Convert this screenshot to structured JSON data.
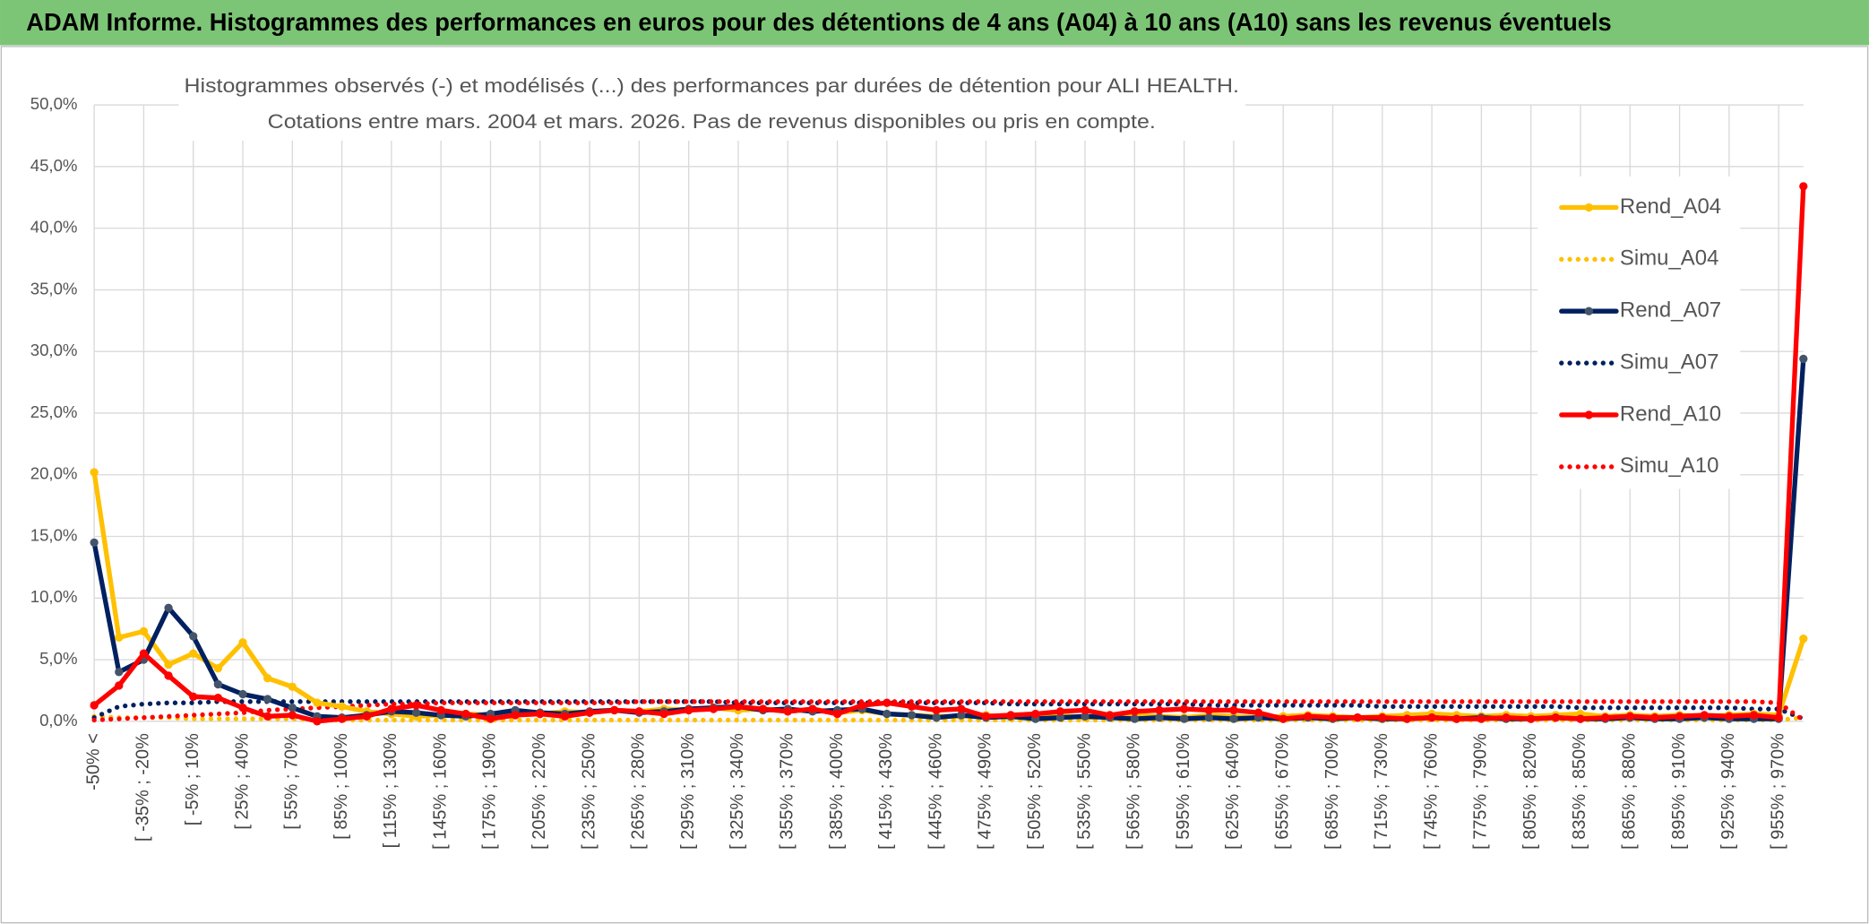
{
  "header": {
    "title": "ADAM Informe. Histogrammes des performances en euros pour des détentions de 4 ans (A04) à 10 ans (A10) sans les revenus éventuels"
  },
  "chart_data": {
    "type": "line",
    "title": "Histogrammes observés (-) et modélisés (...) des performances par durées de détention pour ALI HEALTH.",
    "subtitle": "Cotations entre mars. 2004 et mars. 2026. Pas de revenus disponibles ou pris en compte.",
    "categories": [
      "-50% <",
      null,
      "[ -35% ; -20%",
      null,
      "[ -5% ; 10%",
      null,
      "[ 25% ; 40%",
      null,
      "[ 55% ; 70%",
      null,
      "[ 85% ; 100%",
      null,
      "[ 115% ; 130%",
      null,
      "[ 145% ; 160%",
      null,
      "[ 175% ; 190%",
      null,
      "[ 205% ; 220%",
      null,
      "[ 235% ; 250%",
      null,
      "[ 265% ; 280%",
      null,
      "[ 295% ; 310%",
      null,
      "[ 325% ; 340%",
      null,
      "[ 355% ; 370%",
      null,
      "[ 385% ; 400%",
      null,
      "[ 415% ; 430%",
      null,
      "[ 445% ; 460%",
      null,
      "[ 475% ; 490%",
      null,
      "[ 505% ; 520%",
      null,
      "[ 535% ; 550%",
      null,
      "[ 565% ; 580%",
      null,
      "[ 595% ; 610%",
      null,
      "[ 625% ; 640%",
      null,
      "[ 655% ; 670%",
      null,
      "[ 685% ; 700%",
      null,
      "[ 715% ; 730%",
      null,
      "[ 745% ; 760%",
      null,
      "[ 775% ; 790%",
      null,
      "[ 805% ; 820%",
      null,
      "[ 835% ; 850%",
      null,
      "[ 865% ; 880%",
      null,
      "[ 895% ; 910%",
      null,
      "[ 925% ; 940%",
      null,
      "[ 955% ; 970%",
      null
    ],
    "series": [
      {
        "name": "Rend_A04",
        "color": "#ffc000",
        "line_style": "solid",
        "markers": true,
        "values": [
          20.2,
          6.8,
          7.3,
          4.6,
          5.5,
          4.3,
          6.4,
          3.5,
          2.8,
          1.5,
          1.2,
          0.8,
          0.6,
          0.4,
          0.5,
          0.6,
          0.5,
          0.7,
          0.6,
          0.8,
          0.7,
          0.9,
          0.8,
          1.0,
          0.9,
          1.1,
          0.9,
          1.0,
          0.8,
          1.0,
          0.7,
          0.9,
          0.6,
          0.5,
          0.4,
          0.4,
          0.5,
          0.3,
          0.4,
          0.5,
          0.3,
          0.4,
          0.5,
          0.4,
          0.3,
          0.5,
          0.4,
          0.3,
          0.4,
          0.5,
          0.4,
          0.3,
          0.4,
          0.5,
          0.6,
          0.5,
          0.4,
          0.5,
          0.4,
          0.5,
          0.6,
          0.4,
          0.5,
          0.4,
          0.5,
          0.4,
          0.5,
          0.6,
          0.5,
          6.7
        ]
      },
      {
        "name": "Simu_A04",
        "color": "#ffc000",
        "line_style": "dotted",
        "markers": false,
        "values": [
          0.4,
          0.3,
          0.3,
          0.3,
          0.2,
          0.2,
          0.2,
          0.2,
          0.2,
          0.1,
          0.1,
          0.1,
          0.1,
          0.1,
          0.1,
          0.1,
          0.1,
          0.1,
          0.1,
          0.1,
          0.1,
          0.1,
          0.1,
          0.1,
          0.1,
          0.1,
          0.1,
          0.1,
          0.1,
          0.1,
          0.1,
          0.1,
          0.1,
          0.1,
          0.1,
          0.1,
          0.1,
          0.1,
          0.1,
          0.1,
          0.1,
          0.1,
          0.1,
          0.1,
          0.1,
          0.1,
          0.1,
          0.1,
          0.1,
          0.1,
          0.1,
          0.1,
          0.1,
          0.1,
          0.1,
          0.1,
          0.1,
          0.1,
          0.1,
          0.1,
          0.1,
          0.1,
          0.1,
          0.1,
          0.1,
          0.1,
          0.1,
          0.1,
          0.1,
          0.3
        ]
      },
      {
        "name": "Rend_A07",
        "color": "#002060",
        "line_style": "solid",
        "markers": true,
        "values": [
          14.5,
          4.0,
          5.0,
          9.2,
          6.9,
          3.0,
          2.2,
          1.8,
          1.1,
          0.4,
          0.3,
          0.5,
          0.8,
          0.7,
          0.5,
          0.4,
          0.6,
          0.9,
          0.7,
          0.6,
          0.8,
          0.9,
          0.7,
          0.8,
          1.0,
          1.1,
          1.2,
          0.9,
          1.0,
          0.8,
          0.9,
          1.0,
          0.6,
          0.5,
          0.3,
          0.5,
          0.3,
          0.4,
          0.2,
          0.3,
          0.4,
          0.3,
          0.2,
          0.3,
          0.2,
          0.3,
          0.2,
          0.3,
          0.2,
          0.3,
          0.2,
          0.3,
          0.2,
          0.2,
          0.3,
          0.2,
          0.3,
          0.2,
          0.2,
          0.3,
          0.2,
          0.2,
          0.3,
          0.2,
          0.2,
          0.3,
          0.2,
          0.2,
          0.2,
          29.4
        ]
      },
      {
        "name": "Simu_A07",
        "color": "#002060",
        "line_style": "dotted",
        "markers": false,
        "values": [
          0.3,
          1.2,
          1.4,
          1.5,
          1.5,
          1.6,
          1.6,
          1.6,
          1.6,
          1.6,
          1.6,
          1.6,
          1.6,
          1.6,
          1.6,
          1.6,
          1.6,
          1.6,
          1.6,
          1.6,
          1.6,
          1.6,
          1.6,
          1.6,
          1.6,
          1.6,
          1.5,
          1.5,
          1.5,
          1.5,
          1.5,
          1.5,
          1.5,
          1.5,
          1.5,
          1.5,
          1.5,
          1.4,
          1.4,
          1.4,
          1.4,
          1.4,
          1.4,
          1.4,
          1.4,
          1.3,
          1.3,
          1.3,
          1.3,
          1.3,
          1.3,
          1.3,
          1.2,
          1.2,
          1.2,
          1.2,
          1.2,
          1.2,
          1.2,
          1.2,
          1.1,
          1.1,
          1.1,
          1.1,
          1.1,
          1.1,
          1.1,
          1.0,
          1.0,
          0.2
        ]
      },
      {
        "name": "Rend_A10",
        "color": "#ff0000",
        "line_style": "solid",
        "markers": true,
        "values": [
          1.3,
          2.9,
          5.5,
          3.7,
          2.0,
          1.9,
          1.1,
          0.4,
          0.5,
          0.0,
          0.2,
          0.4,
          1.0,
          1.3,
          0.9,
          0.6,
          0.2,
          0.5,
          0.6,
          0.4,
          0.7,
          0.9,
          0.8,
          0.6,
          0.9,
          1.0,
          1.2,
          1.0,
          0.8,
          1.0,
          0.6,
          1.3,
          1.5,
          1.2,
          0.9,
          1.0,
          0.4,
          0.5,
          0.6,
          0.8,
          0.9,
          0.5,
          0.8,
          0.9,
          1.0,
          0.9,
          0.9,
          0.7,
          0.2,
          0.4,
          0.3,
          0.3,
          0.3,
          0.2,
          0.3,
          0.2,
          0.2,
          0.3,
          0.2,
          0.3,
          0.2,
          0.3,
          0.4,
          0.3,
          0.4,
          0.5,
          0.4,
          0.5,
          0.3,
          43.4
        ]
      },
      {
        "name": "Simu_A10",
        "color": "#ff0000",
        "line_style": "dotted",
        "markers": false,
        "values": [
          0.1,
          0.2,
          0.3,
          0.4,
          0.5,
          0.6,
          0.7,
          0.9,
          1.0,
          1.1,
          1.2,
          1.3,
          1.4,
          1.4,
          1.5,
          1.5,
          1.5,
          1.5,
          1.5,
          1.5,
          1.5,
          1.5,
          1.6,
          1.6,
          1.6,
          1.6,
          1.6,
          1.6,
          1.6,
          1.6,
          1.6,
          1.6,
          1.6,
          1.6,
          1.6,
          1.6,
          1.6,
          1.6,
          1.6,
          1.6,
          1.6,
          1.6,
          1.6,
          1.6,
          1.6,
          1.6,
          1.6,
          1.6,
          1.6,
          1.6,
          1.6,
          1.6,
          1.6,
          1.6,
          1.6,
          1.6,
          1.6,
          1.6,
          1.6,
          1.6,
          1.6,
          1.6,
          1.6,
          1.6,
          1.6,
          1.6,
          1.6,
          1.6,
          1.5,
          0.1
        ]
      }
    ],
    "ylim": [
      0,
      50
    ],
    "yticks": [
      {
        "value": 0,
        "label": "0,0%"
      },
      {
        "value": 5,
        "label": "5,0%"
      },
      {
        "value": 10,
        "label": "10,0%"
      },
      {
        "value": 15,
        "label": "15,0%"
      },
      {
        "value": 20,
        "label": "20,0%"
      },
      {
        "value": 25,
        "label": "25,0%"
      },
      {
        "value": 30,
        "label": "30,0%"
      },
      {
        "value": 35,
        "label": "35,0%"
      },
      {
        "value": 40,
        "label": "40,0%"
      },
      {
        "value": 45,
        "label": "45,0%"
      },
      {
        "value": 50,
        "label": "50,0%"
      }
    ],
    "grid": true,
    "legend": "right"
  }
}
